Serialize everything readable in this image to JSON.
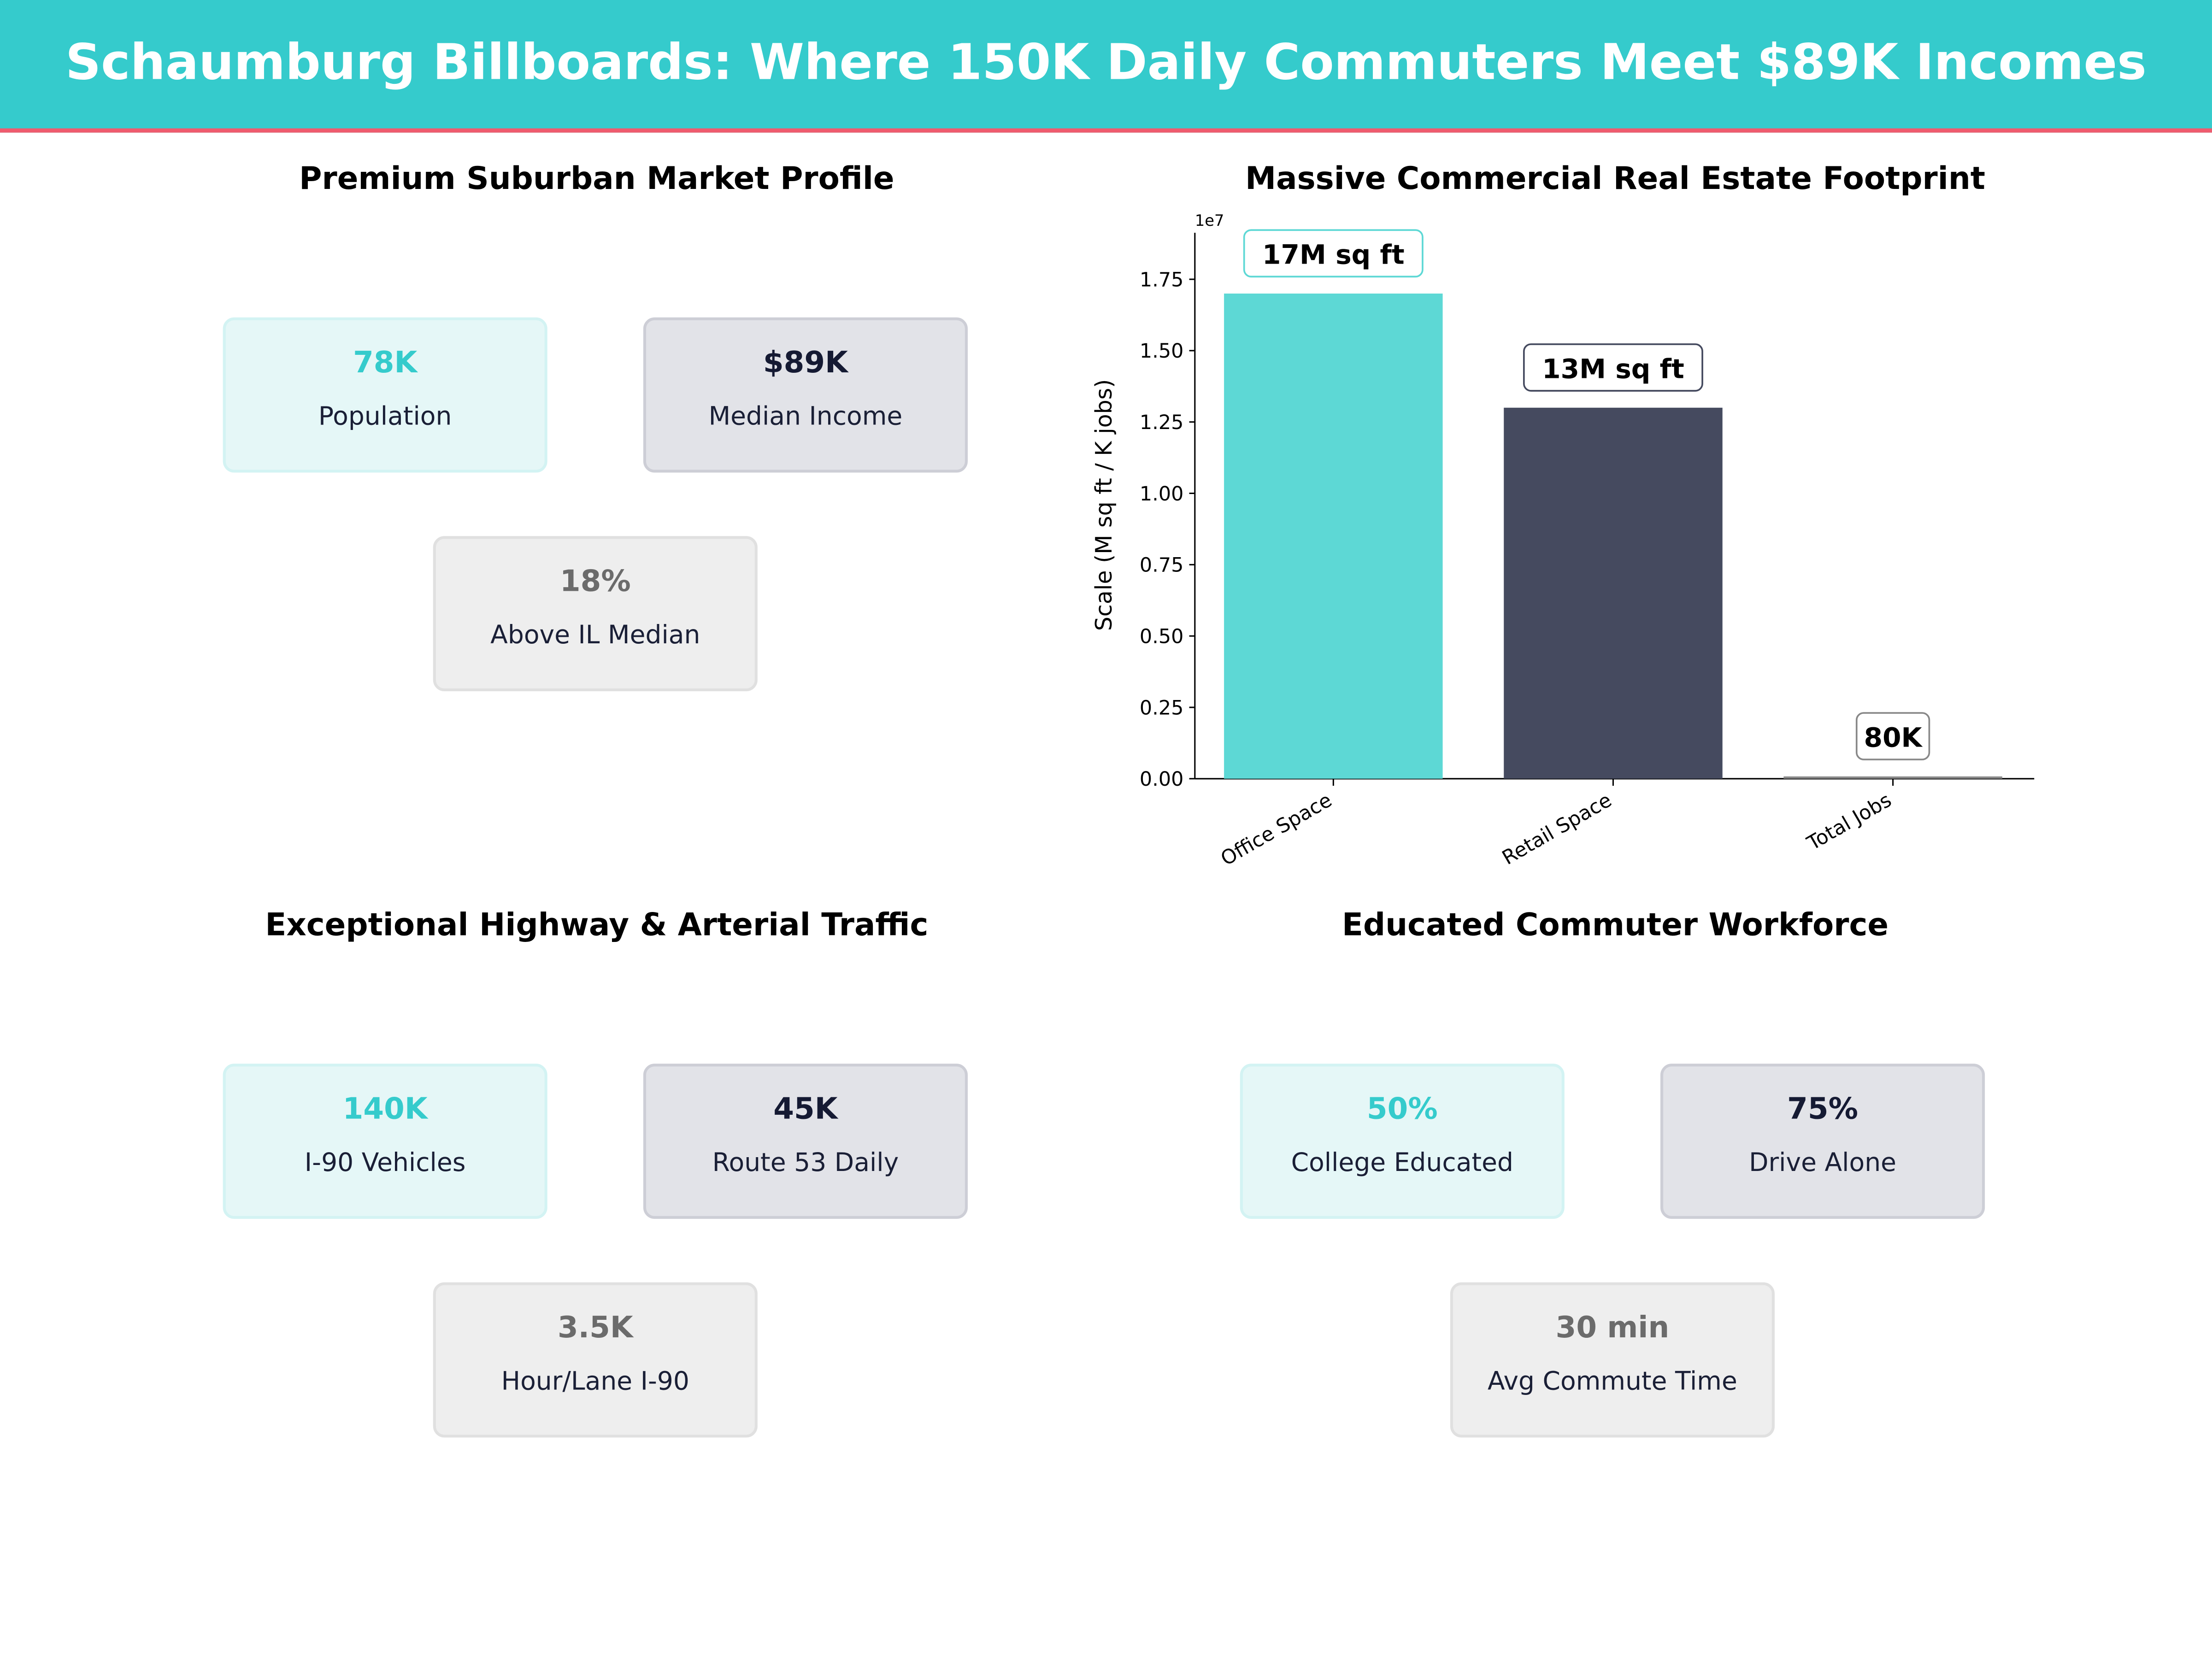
{
  "header": {
    "title": "Schaumburg Billboards: Where 150K Daily Commuters Meet $89K Incomes",
    "bg_color": "#35CBCC",
    "accent_color": "#EF5B6E"
  },
  "panels": [
    {
      "title": "Premium Suburban Market Profile",
      "cards": [
        {
          "value": "78K",
          "label": "Population"
        },
        {
          "value": "$89K",
          "label": "Median Income"
        },
        {
          "value": "18%",
          "label": "Above IL Median"
        }
      ]
    },
    {
      "title": "Exceptional Highway & Arterial Traffic",
      "cards": [
        {
          "value": "140K",
          "label": "I-90  Vehicles"
        },
        {
          "value": "45K",
          "label": "Route 53 Daily"
        },
        {
          "value": "3.5K",
          "label": "Hour/Lane I-90"
        }
      ]
    },
    {
      "title": "Educated Commuter Workforce",
      "cards": [
        {
          "value": "50%",
          "label": "College Educated"
        },
        {
          "value": "75%",
          "label": "Drive Alone"
        },
        {
          "value": "30 min",
          "label": "Avg Commute Time"
        }
      ]
    }
  ],
  "chart_data": {
    "type": "bar",
    "title": "Massive Commercial Real Estate Footprint",
    "categories": [
      "Office Space",
      "Retail Space",
      "Total Jobs"
    ],
    "values": [
      17000000,
      13000000,
      80000
    ],
    "data_labels": [
      "17M sq ft",
      "13M sq ft",
      "80K"
    ],
    "colors": [
      "#5DD8D5",
      "#454A5F",
      "#888888"
    ],
    "ylabel": "Scale (M sq ft / K jobs)",
    "xlabel": "",
    "offset_label": "1e7",
    "yticks": [
      "0.00",
      "0.25",
      "0.50",
      "0.75",
      "1.00",
      "1.25",
      "1.50",
      "1.75"
    ],
    "ylim": [
      0,
      19130000
    ],
    "grid": false
  }
}
